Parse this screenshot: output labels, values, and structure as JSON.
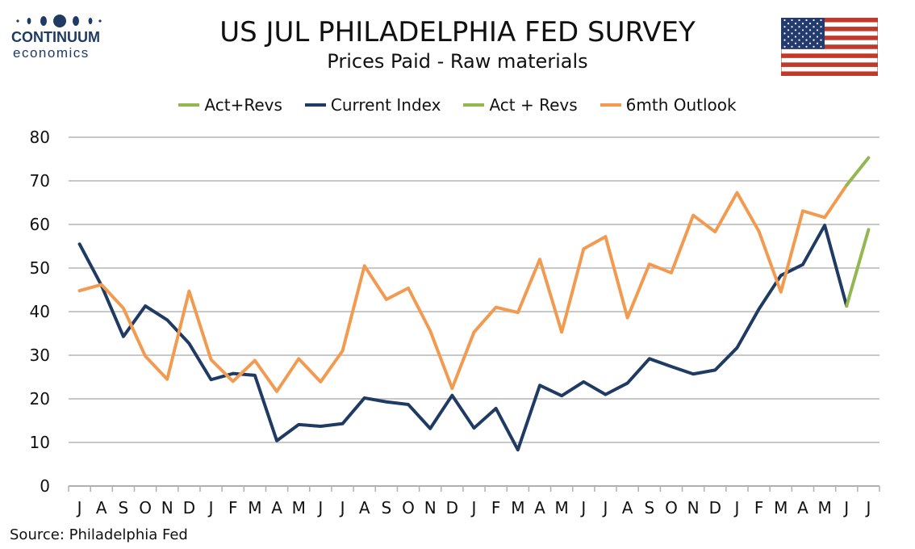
{
  "logo": {
    "name": "CONTINUUM",
    "sub": "economics",
    "color": "#1f3b63"
  },
  "header": {
    "title": "US JUL PHILADELPHIA FED SURVEY",
    "subtitle": "Prices Paid - Raw materials"
  },
  "flag": {
    "icon": "us-flag-icon"
  },
  "source": "Source: Philadelphia Fed",
  "chart_data": {
    "type": "line",
    "title": "US JUL PHILADELPHIA FED SURVEY",
    "subtitle": "Prices Paid - Raw materials",
    "xlabel": "",
    "ylabel": "",
    "ylim": [
      0,
      80
    ],
    "yticks": [
      0,
      10,
      20,
      30,
      40,
      50,
      60,
      70,
      80
    ],
    "grid": true,
    "legend_position": "top",
    "categories": [
      "J",
      "A",
      "S",
      "O",
      "N",
      "D",
      "J",
      "F",
      "M",
      "A",
      "M",
      "J",
      "J",
      "A",
      "S",
      "O",
      "N",
      "D",
      "J",
      "F",
      "M",
      "A",
      "M",
      "J",
      "J",
      "A",
      "S",
      "O",
      "N",
      "D",
      "J",
      "F",
      "M",
      "A",
      "M",
      "J",
      "J"
    ],
    "legend": [
      {
        "label": "Act+Revs",
        "color": "#92b84f"
      },
      {
        "label": "Current Index",
        "color": "#1f3b63"
      },
      {
        "label": "Act + Revs",
        "color": "#92b84f"
      },
      {
        "label": "6mth Outlook",
        "color": "#f29b50"
      }
    ],
    "series": [
      {
        "name": "Current Index",
        "color": "#1f3b63",
        "values": [
          55.5,
          46.0,
          34.3,
          41.3,
          38.1,
          32.7,
          24.4,
          25.8,
          25.4,
          10.4,
          14.1,
          13.7,
          14.3,
          20.2,
          19.3,
          18.7,
          13.2,
          20.8,
          13.3,
          17.8,
          8.3,
          23.1,
          20.7,
          23.9,
          21.0,
          23.6,
          29.2,
          27.4,
          25.7,
          26.6,
          31.7,
          40.6,
          48.3,
          50.8,
          59.8,
          41.3,
          null
        ]
      },
      {
        "name": "Act+Revs",
        "color": "#92b84f",
        "values": [
          null,
          null,
          null,
          null,
          null,
          null,
          null,
          null,
          null,
          null,
          null,
          null,
          null,
          null,
          null,
          null,
          null,
          null,
          null,
          null,
          null,
          null,
          null,
          null,
          null,
          null,
          null,
          null,
          null,
          null,
          null,
          null,
          null,
          null,
          null,
          41.3,
          58.8
        ]
      },
      {
        "name": "6mth Outlook",
        "color": "#f29b50",
        "values": [
          44.8,
          46.2,
          40.8,
          29.8,
          24.5,
          44.7,
          29.0,
          24.0,
          28.8,
          21.7,
          29.2,
          23.9,
          31.0,
          50.5,
          42.8,
          45.4,
          35.6,
          22.4,
          35.3,
          41.0,
          39.8,
          52.0,
          35.3,
          54.4,
          57.2,
          38.6,
          50.9,
          48.9,
          62.1,
          58.3,
          67.3,
          58.4,
          44.5,
          63.1,
          61.6,
          69.0,
          null
        ]
      },
      {
        "name": "Act + Revs",
        "color": "#92b84f",
        "values": [
          null,
          null,
          null,
          null,
          null,
          null,
          null,
          null,
          null,
          null,
          null,
          null,
          null,
          null,
          null,
          null,
          null,
          null,
          null,
          null,
          null,
          null,
          null,
          null,
          null,
          null,
          null,
          null,
          null,
          null,
          null,
          null,
          null,
          null,
          null,
          69.0,
          75.3
        ]
      }
    ]
  }
}
